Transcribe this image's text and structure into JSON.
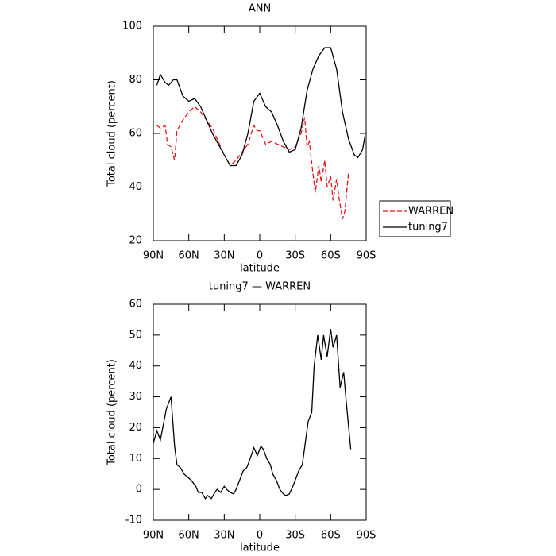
{
  "chart_data": [
    {
      "type": "line",
      "title": "ANN",
      "xlabel": "latitude",
      "ylabel": "Total cloud (percent)",
      "xlim": [
        90,
        -90
      ],
      "xticks": [
        {
          "value": 90,
          "label": "90N"
        },
        {
          "value": 60,
          "label": "60N"
        },
        {
          "value": 30,
          "label": "30N"
        },
        0,
        {
          "value": -30,
          "label": "30S"
        },
        {
          "value": -60,
          "label": "60S"
        },
        {
          "value": -90,
          "label": "90S"
        }
      ],
      "ylim": [
        20,
        100
      ],
      "yticks": [
        20,
        40,
        60,
        80,
        100
      ],
      "legend": "right",
      "series": [
        {
          "name": "WARREN",
          "color": "#e8161a",
          "dash": true,
          "x": [
            87,
            84,
            80,
            78,
            75,
            72,
            70,
            65,
            60,
            55,
            50,
            45,
            40,
            35,
            30,
            25,
            20,
            15,
            10,
            5,
            2,
            0,
            -5,
            -10,
            -15,
            -20,
            -25,
            -30,
            -35,
            -38,
            -40,
            -42,
            -45,
            -47,
            -50,
            -52,
            -55,
            -57,
            -60,
            -62,
            -65,
            -67,
            -70,
            -72,
            -75
          ],
          "values": [
            63,
            62,
            63,
            56,
            55,
            50,
            61,
            65,
            68,
            70,
            68,
            65,
            62,
            57,
            52,
            48,
            50,
            53,
            56,
            63,
            61,
            61,
            56,
            57,
            56,
            55,
            54,
            55,
            60,
            66,
            55,
            57,
            45,
            38,
            48,
            42,
            50,
            40,
            44,
            35,
            43,
            36,
            28,
            31,
            45
          ]
        },
        {
          "name": "tuning7",
          "color": "#000000",
          "dash": false,
          "x": [
            87,
            84,
            80,
            77,
            73,
            70,
            65,
            60,
            55,
            50,
            45,
            40,
            35,
            30,
            25,
            20,
            15,
            10,
            5,
            0,
            -5,
            -10,
            -15,
            -20,
            -25,
            -30,
            -35,
            -40,
            -45,
            -50,
            -55,
            -60,
            -65,
            -70,
            -75,
            -80,
            -83,
            -87,
            -89
          ],
          "values": [
            78,
            82,
            79,
            78,
            80,
            80,
            74,
            72,
            73,
            70,
            65,
            60,
            56,
            52,
            48,
            48,
            52,
            60,
            72,
            75,
            70,
            68,
            63,
            57,
            53,
            54,
            62,
            76,
            84,
            89,
            92,
            92,
            84,
            68,
            58,
            52,
            51,
            54,
            59
          ]
        }
      ]
    },
    {
      "type": "line",
      "title": "tuning7 — WARREN",
      "xlabel": "latitude",
      "ylabel": "Total cloud (percent)",
      "xlim": [
        90,
        -90
      ],
      "xticks": [
        {
          "value": 90,
          "label": "90N"
        },
        {
          "value": 60,
          "label": "60N"
        },
        {
          "value": 30,
          "label": "30N"
        },
        0,
        {
          "value": -30,
          "label": "30S"
        },
        {
          "value": -60,
          "label": "60S"
        },
        {
          "value": -90,
          "label": "90S"
        }
      ],
      "ylim": [
        -10,
        60
      ],
      "yticks": [
        -10,
        0,
        10,
        20,
        30,
        40,
        50,
        60
      ],
      "series": [
        {
          "color": "#000000",
          "dash": false,
          "x": [
            90,
            87,
            84,
            81,
            79,
            75,
            72,
            70,
            67,
            64,
            61,
            58,
            54,
            52,
            49,
            46,
            44,
            41,
            38,
            36,
            33,
            30,
            28,
            25,
            22,
            20,
            17,
            14,
            11,
            9,
            5,
            2,
            -1,
            -3,
            -6,
            -9,
            -11,
            -14,
            -17,
            -20,
            -22,
            -25,
            -28,
            -30,
            -33,
            -36,
            -41,
            -44,
            -46,
            -49,
            -52,
            -54,
            -57,
            -60,
            -62,
            -65,
            -68,
            -71,
            -73,
            -77
          ],
          "values": [
            15,
            19,
            16,
            22,
            26,
            30,
            14,
            8,
            7,
            5,
            4,
            3,
            1,
            -1,
            -1,
            -3,
            -2,
            -3,
            -1,
            0,
            -1,
            1,
            0,
            -1,
            -1.5,
            0,
            3,
            6,
            7,
            9,
            13.5,
            11,
            14,
            13,
            10,
            8,
            5,
            3,
            0,
            -1.5,
            -2,
            -1.5,
            1,
            3,
            6,
            8,
            22,
            25,
            40,
            50,
            42,
            50,
            43,
            52,
            46,
            50,
            33,
            38,
            29,
            13
          ]
        }
      ]
    }
  ]
}
